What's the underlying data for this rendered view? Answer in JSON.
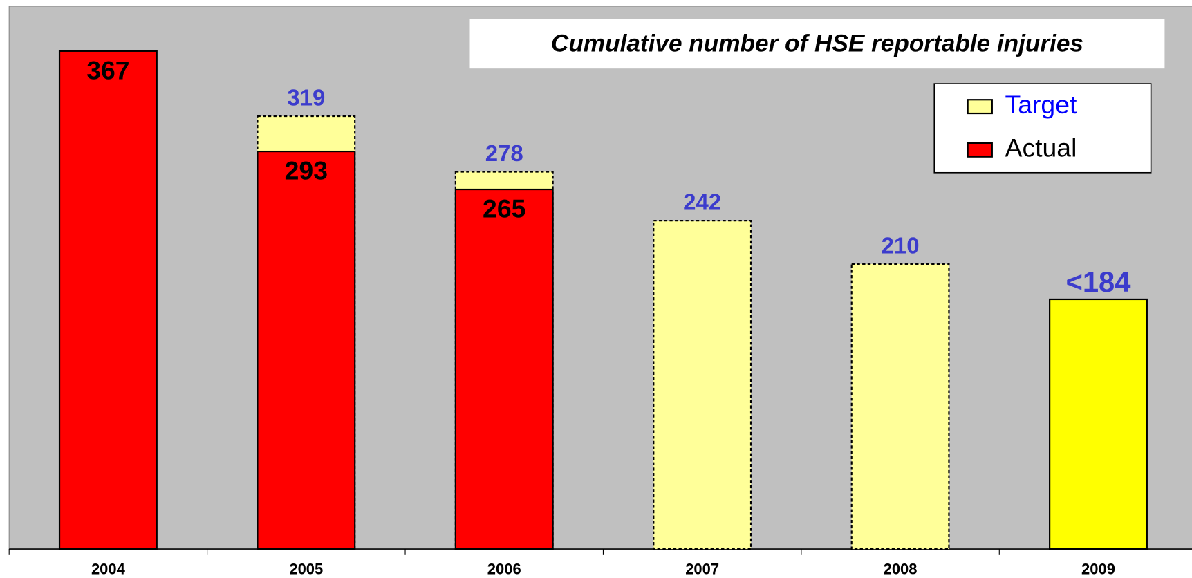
{
  "chart_data": {
    "type": "bar",
    "title": "Cumulative number of HSE reportable injuries",
    "categories": [
      "2004",
      "2005",
      "2006",
      "2007",
      "2008",
      "2009"
    ],
    "series": [
      {
        "name": "Target",
        "colors": [
          "#ffff99",
          "#ffff99",
          "#ffff99",
          "#ffff99",
          "#ffff99",
          "#ffff00"
        ],
        "border": [
          "dashed",
          "dashed",
          "dashed",
          "dashed",
          "dashed",
          "solid"
        ],
        "values": [
          null,
          319,
          278,
          242,
          210,
          184
        ],
        "value_labels": [
          null,
          "319",
          "278",
          "242",
          "210",
          "<184"
        ],
        "label_color": "#3c3ccc"
      },
      {
        "name": "Actual",
        "color": "#ff0000",
        "values": [
          367,
          293,
          265,
          null,
          null,
          null
        ],
        "label_color": "#000000"
      }
    ],
    "legend": "top-right",
    "overlap": true
  }
}
